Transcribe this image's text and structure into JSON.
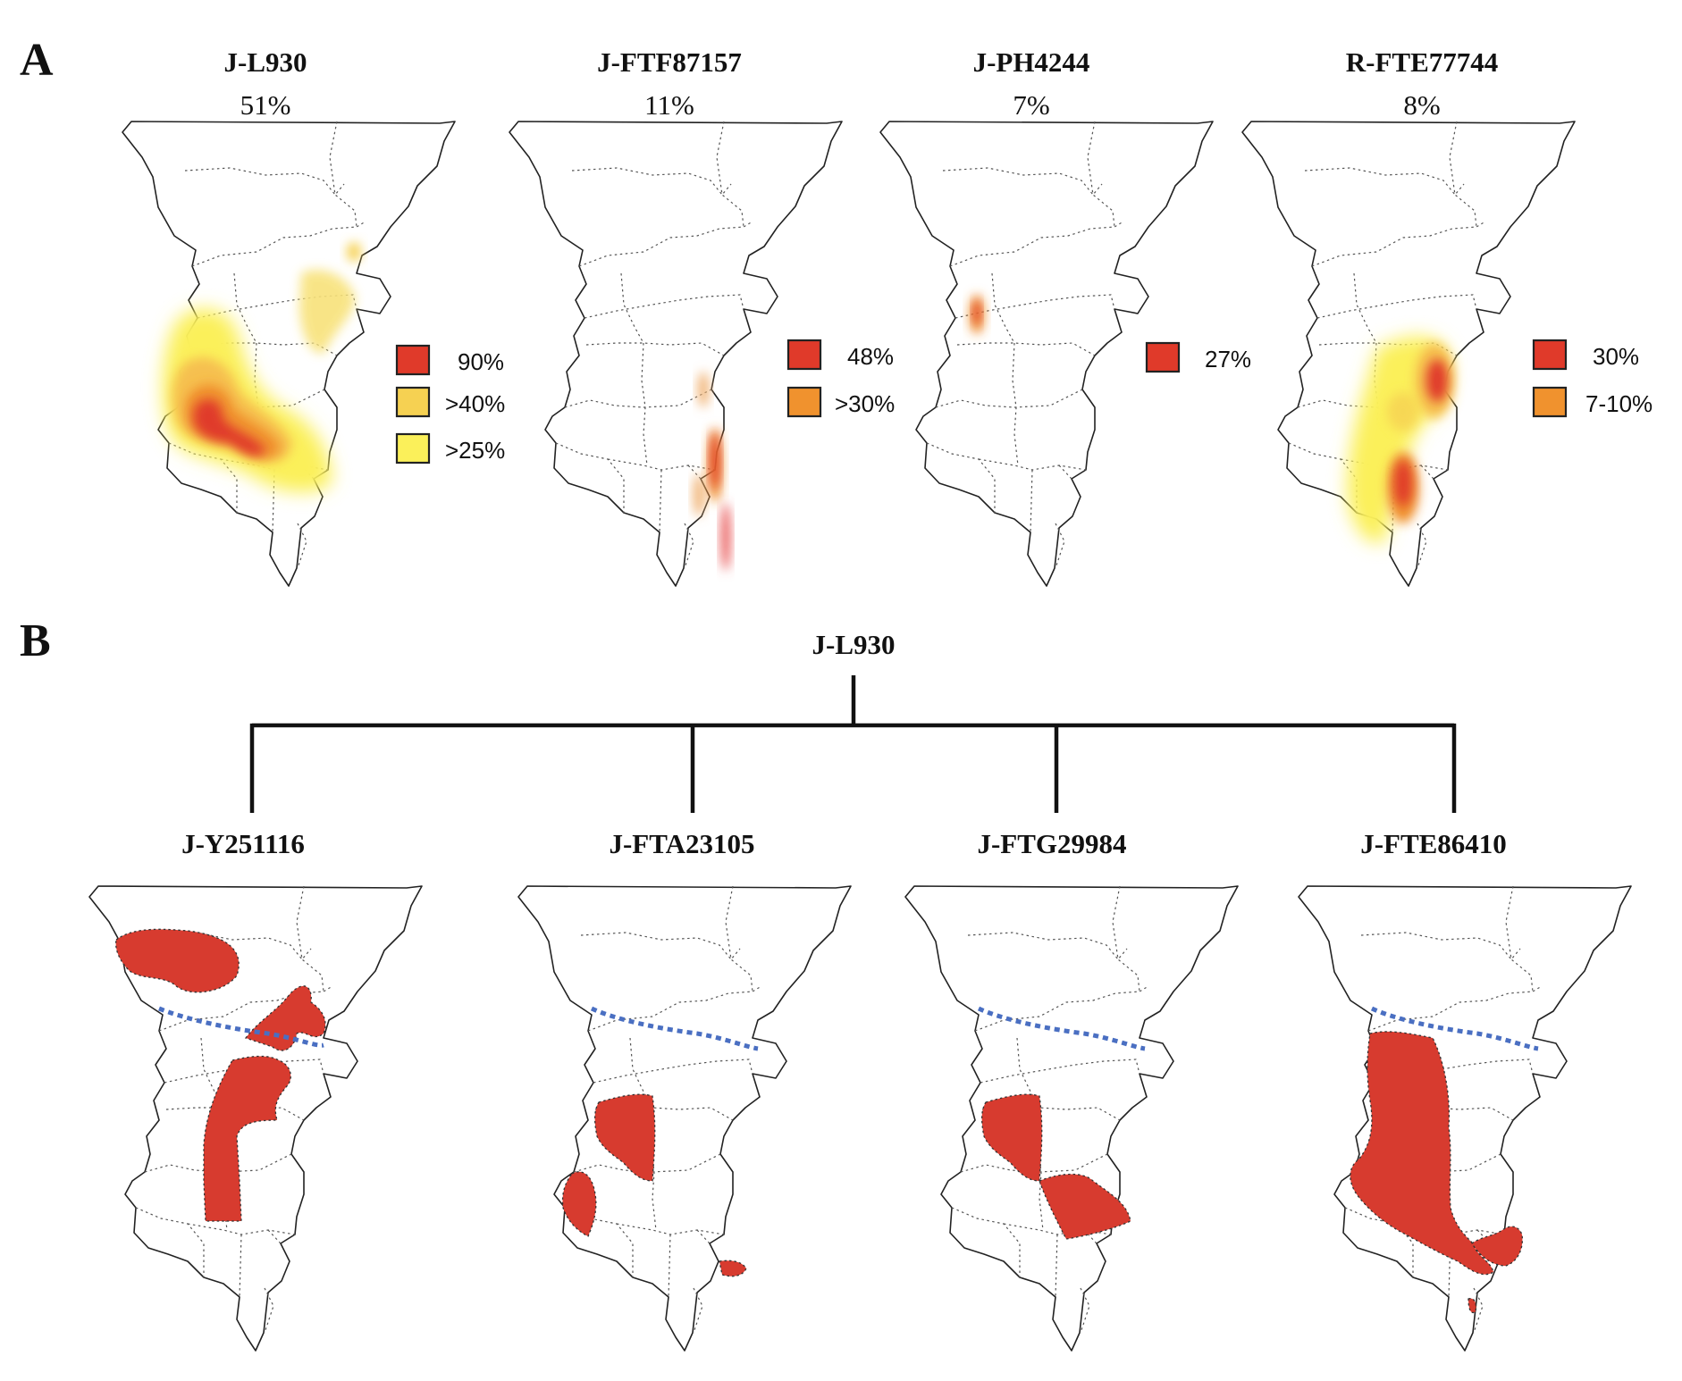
{
  "panel_a": {
    "letter": "A",
    "maps": [
      {
        "title": "J-L930",
        "percent": "51%",
        "legend": [
          "90%",
          ">40%",
          ">25%"
        ]
      },
      {
        "title": "J-FTF87157",
        "percent": "11%",
        "legend": [
          "48%",
          ">30%"
        ]
      },
      {
        "title": "J-PH4244",
        "percent": "7%",
        "legend": [
          "27%"
        ]
      },
      {
        "title": "R-FTE77744",
        "percent": "8%",
        "legend": [
          "30%",
          "7-10%"
        ]
      }
    ]
  },
  "panel_b": {
    "letter": "B",
    "root": "J-L930",
    "children": [
      "J-Y251116",
      "J-FTA23105",
      "J-FTG29984",
      "J-FTE86410"
    ]
  },
  "colors": {
    "high": "#e03a2a",
    "medium": "#f0922e",
    "low_yellow": "#f6d152",
    "pale_yellow": "#fbf05a",
    "region_fill": "#d73b2f",
    "boundary_line": "#4a6fc2"
  }
}
